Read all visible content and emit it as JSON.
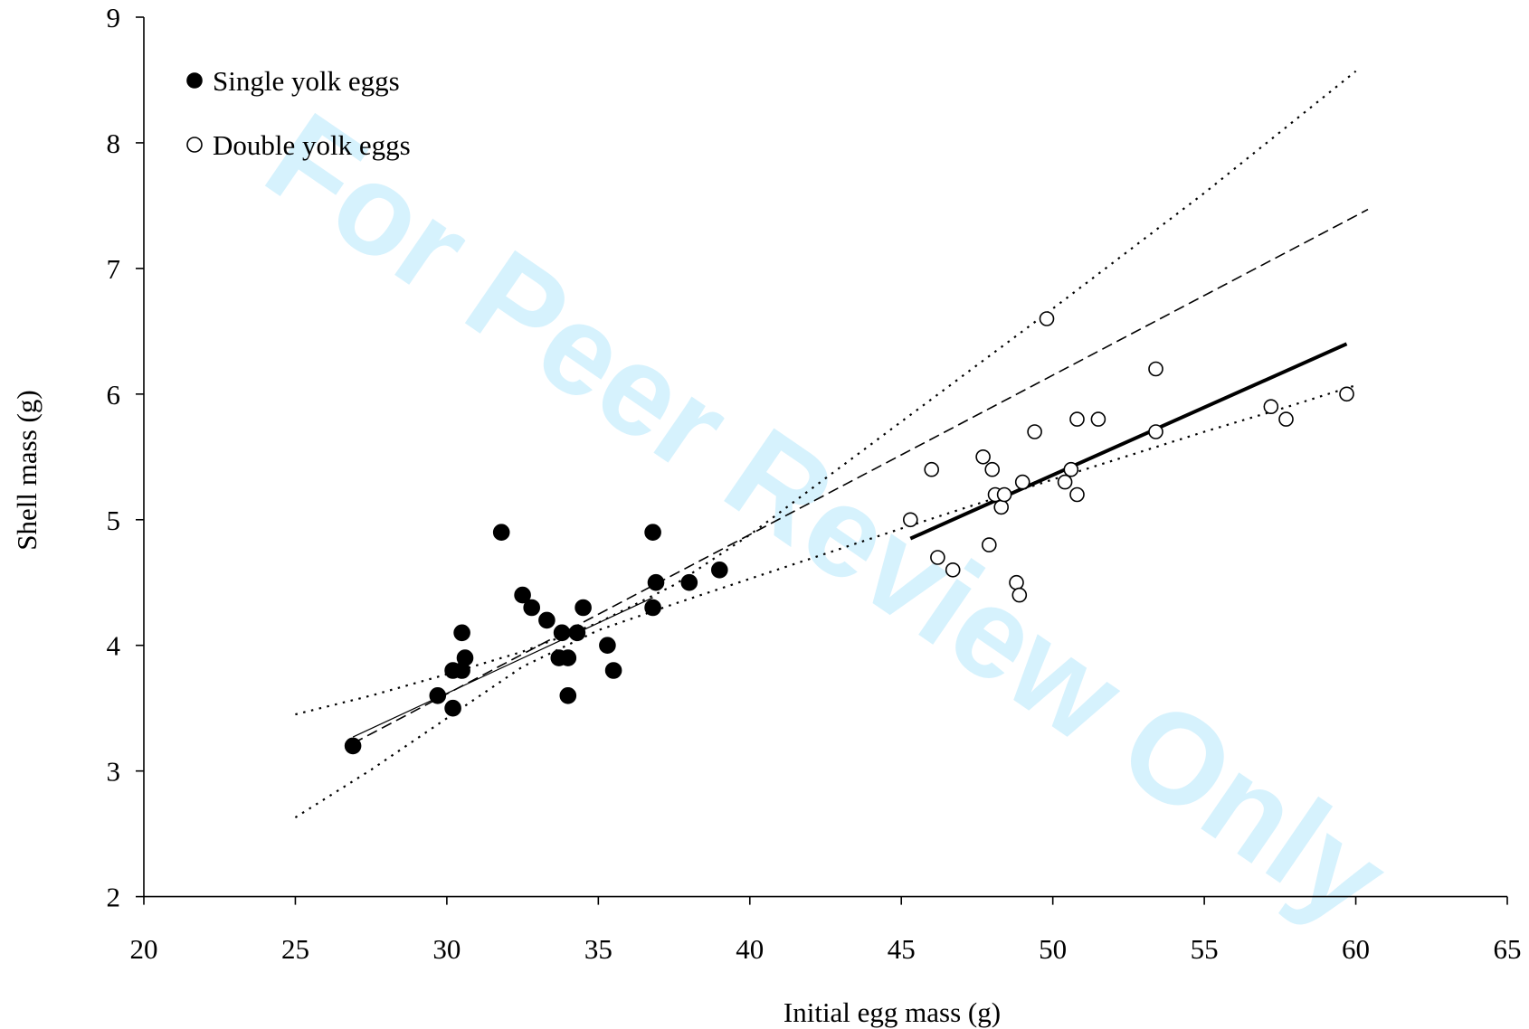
{
  "chart_data": {
    "type": "scatter",
    "xlabel": "Initial egg mass (g)",
    "ylabel": "Shell mass (g)",
    "xlim": [
      20,
      65
    ],
    "ylim": [
      2,
      9
    ],
    "xticks": [
      20,
      25,
      30,
      35,
      40,
      45,
      50,
      55,
      60,
      65
    ],
    "yticks": [
      2,
      3,
      4,
      5,
      6,
      7,
      8,
      9
    ],
    "grid": false,
    "legend_position": "top-left",
    "watermark": "For Peer Review Only",
    "series": [
      {
        "name": "Single yolk eggs",
        "marker": "filled-circle",
        "points": [
          [
            26.9,
            3.2
          ],
          [
            29.7,
            3.6
          ],
          [
            30.2,
            3.5
          ],
          [
            30.2,
            3.8
          ],
          [
            30.5,
            3.8
          ],
          [
            30.5,
            4.1
          ],
          [
            30.6,
            3.9
          ],
          [
            31.8,
            4.9
          ],
          [
            32.5,
            4.4
          ],
          [
            32.8,
            4.3
          ],
          [
            33.3,
            4.2
          ],
          [
            33.7,
            3.9
          ],
          [
            33.8,
            4.1
          ],
          [
            34.0,
            3.6
          ],
          [
            34.0,
            3.9
          ],
          [
            34.3,
            4.1
          ],
          [
            34.5,
            4.3
          ],
          [
            35.3,
            4.0
          ],
          [
            35.5,
            3.8
          ],
          [
            36.8,
            4.9
          ],
          [
            36.8,
            4.3
          ],
          [
            36.9,
            4.5
          ],
          [
            38.0,
            4.5
          ],
          [
            39.0,
            4.6
          ]
        ]
      },
      {
        "name": "Double yolk eggs",
        "marker": "open-circle",
        "points": [
          [
            45.3,
            5.0
          ],
          [
            46.0,
            5.4
          ],
          [
            46.2,
            4.7
          ],
          [
            46.7,
            4.6
          ],
          [
            47.7,
            5.5
          ],
          [
            47.9,
            4.8
          ],
          [
            48.0,
            5.4
          ],
          [
            48.1,
            5.2
          ],
          [
            48.3,
            5.1
          ],
          [
            48.4,
            5.2
          ],
          [
            48.8,
            4.5
          ],
          [
            48.9,
            4.4
          ],
          [
            49.0,
            5.3
          ],
          [
            49.4,
            5.7
          ],
          [
            49.8,
            6.6
          ],
          [
            50.4,
            5.3
          ],
          [
            50.6,
            5.4
          ],
          [
            50.8,
            5.8
          ],
          [
            50.8,
            5.2
          ],
          [
            51.5,
            5.8
          ],
          [
            53.4,
            6.2
          ],
          [
            53.4,
            5.7
          ],
          [
            57.2,
            5.9
          ],
          [
            57.7,
            5.8
          ],
          [
            59.7,
            6.0
          ]
        ]
      }
    ],
    "lines": [
      {
        "style": "thin-solid",
        "points": [
          [
            26.9,
            3.27
          ],
          [
            36.8,
            4.38
          ]
        ]
      },
      {
        "style": "dashed",
        "points": [
          [
            26.9,
            3.22
          ],
          [
            60.4,
            7.47
          ]
        ]
      },
      {
        "style": "dotted",
        "points": [
          [
            25,
            3.45
          ],
          [
            27.5,
            3.6
          ],
          [
            30,
            3.77
          ],
          [
            32.5,
            3.95
          ],
          [
            35,
            4.18
          ],
          [
            37.5,
            4.48
          ],
          [
            40,
            4.88
          ],
          [
            45,
            5.78
          ],
          [
            50,
            6.68
          ],
          [
            55,
            7.6
          ],
          [
            60,
            8.57
          ]
        ]
      },
      {
        "style": "dotted",
        "points": [
          [
            25,
            2.63
          ],
          [
            27.5,
            3.01
          ],
          [
            30,
            3.42
          ],
          [
            32.5,
            3.83
          ],
          [
            35,
            4.12
          ],
          [
            37.5,
            4.33
          ],
          [
            40,
            4.53
          ],
          [
            45,
            4.93
          ],
          [
            50,
            5.32
          ],
          [
            55,
            5.7
          ],
          [
            57.5,
            5.88
          ],
          [
            60,
            6.07
          ]
        ]
      },
      {
        "style": "thick-solid",
        "points": [
          [
            45.3,
            4.85
          ],
          [
            59.7,
            6.4
          ]
        ]
      }
    ]
  }
}
